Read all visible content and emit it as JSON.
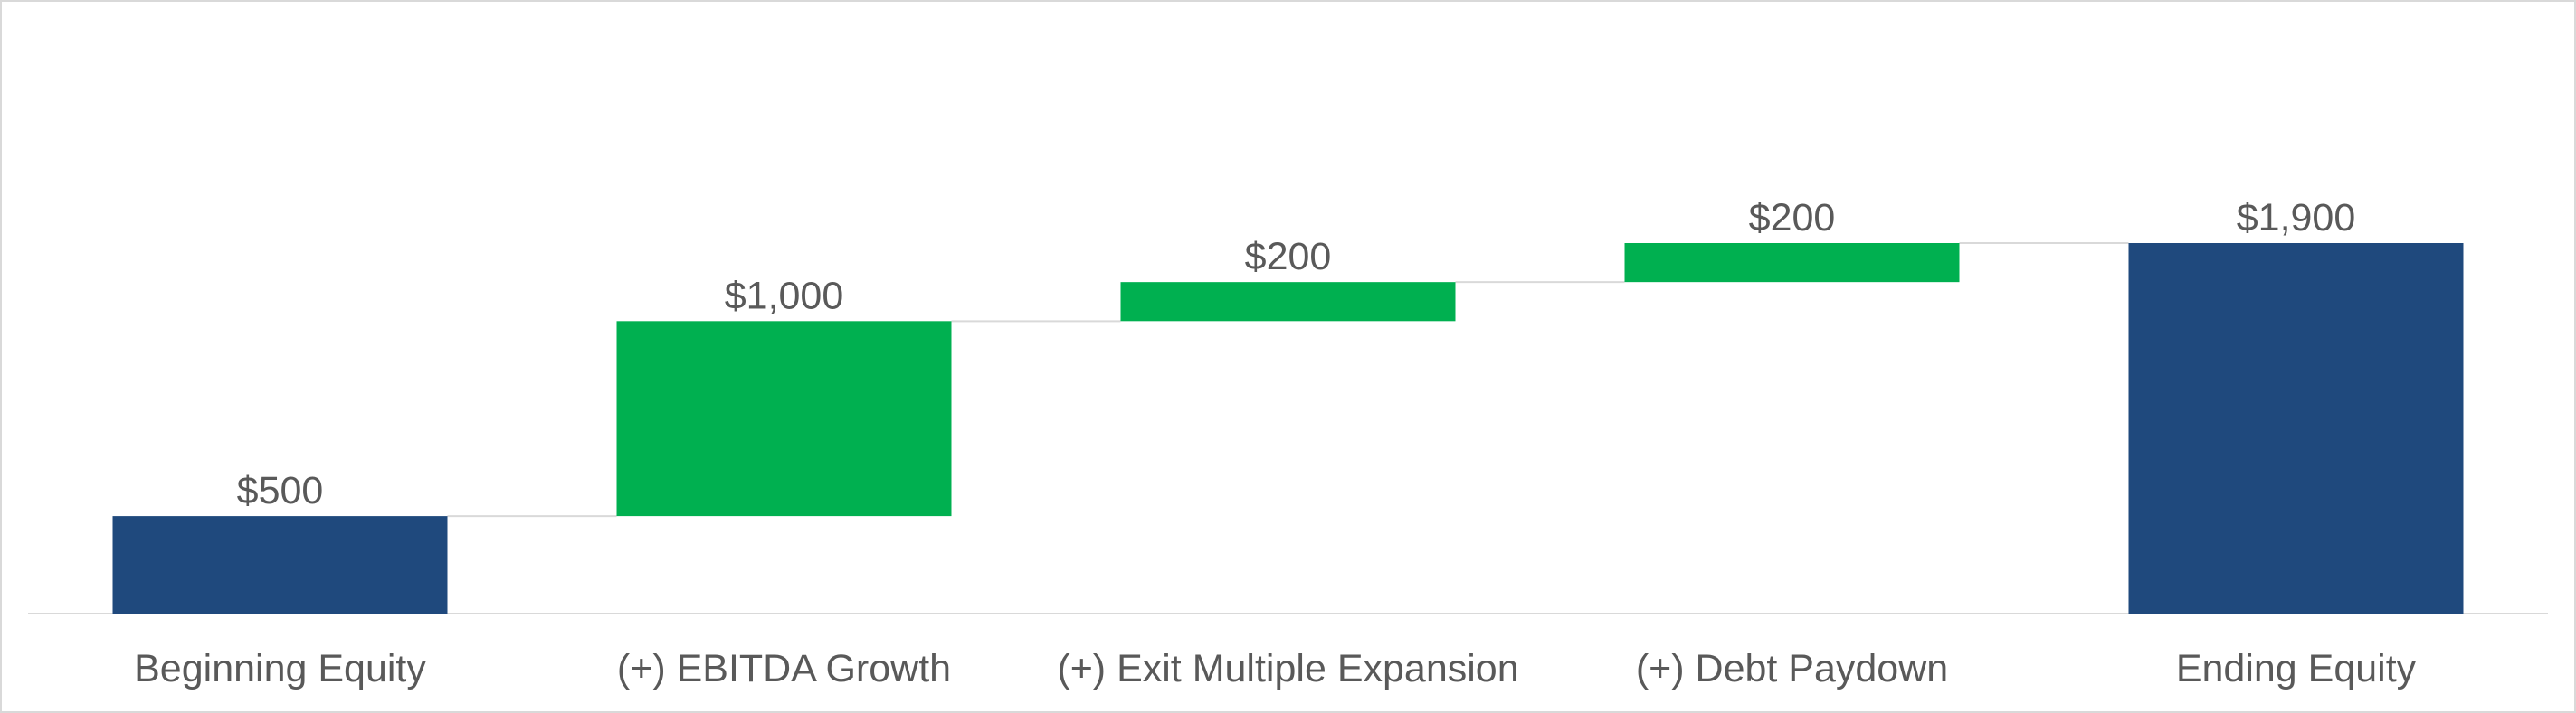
{
  "chart_data": {
    "type": "waterfall",
    "categories": [
      "Beginning Equity",
      "(+) EBITDA Growth",
      "(+) Exit Multiple Expansion",
      "(+) Debt Paydown",
      "Ending Equity"
    ],
    "values": [
      500,
      1000,
      200,
      200,
      1900
    ],
    "value_labels": [
      "$500",
      "$1,000",
      "$200",
      "$200",
      "$1,900"
    ],
    "measure": [
      "total",
      "increase",
      "increase",
      "increase",
      "total"
    ],
    "colors": {
      "total": "#1f497d",
      "increase": "#00b050"
    }
  }
}
